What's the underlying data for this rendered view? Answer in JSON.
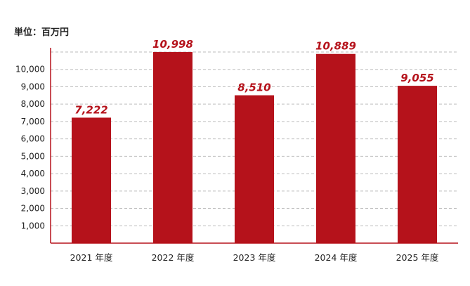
{
  "unit_label": "単位：百万円",
  "colors": {
    "bar": "#b5121b",
    "axis": "#b5121b",
    "grid": "#bdbdbd"
  },
  "chart_data": {
    "type": "bar",
    "categories": [
      "2021 年度",
      "2022 年度",
      "2023 年度",
      "2024 年度",
      "2025 年度"
    ],
    "values": [
      7222,
      10998,
      8510,
      10889,
      9055
    ],
    "data_labels": [
      "7,222",
      "10,998",
      "8,510",
      "10,889",
      "9,055"
    ],
    "yticks": [
      1000,
      2000,
      3000,
      4000,
      5000,
      6000,
      7000,
      8000,
      9000,
      10000
    ],
    "ytick_labels": [
      "1,000",
      "2,000",
      "3,000",
      "4,000",
      "5,000",
      "6,000",
      "7,000",
      "8,000",
      "9,000",
      "10,000"
    ],
    "ylim": [
      0,
      11000
    ],
    "grid": true
  }
}
